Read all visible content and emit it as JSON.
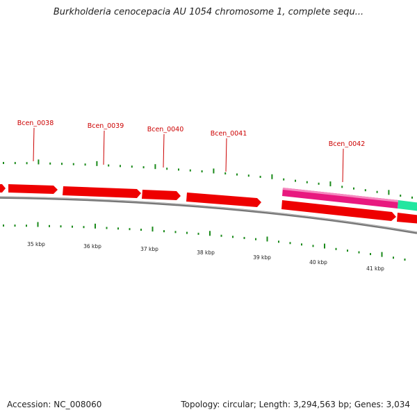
{
  "title": "Burkholderia cenocepacia AU 1054 chromosome 1, complete sequ...",
  "footer": {
    "accession_label": "Accession:",
    "accession": "NC_008060",
    "topology_label": "Topology:",
    "topology": "circular",
    "length_label": "Length:",
    "length": "3,294,563 bp",
    "genes_label": "Genes:",
    "genes": "3,034"
  },
  "colors": {
    "cds": "#ee0000",
    "highlight_pink": "#e8197f",
    "highlight_teal": "#22e6a0",
    "tick": "#1a8a1a",
    "backbone": "#777777",
    "gene_label": "#cc0000"
  },
  "gene_labels": [
    "Bcen_0038",
    "Bcen_0039",
    "Bcen_0040",
    "Bcen_0041",
    "Bcen_0042"
  ],
  "kbp_labels": [
    "35 kbp",
    "36 kbp",
    "37 kbp",
    "38 kbp",
    "39 kbp",
    "40 kbp",
    "41 kbp"
  ]
}
